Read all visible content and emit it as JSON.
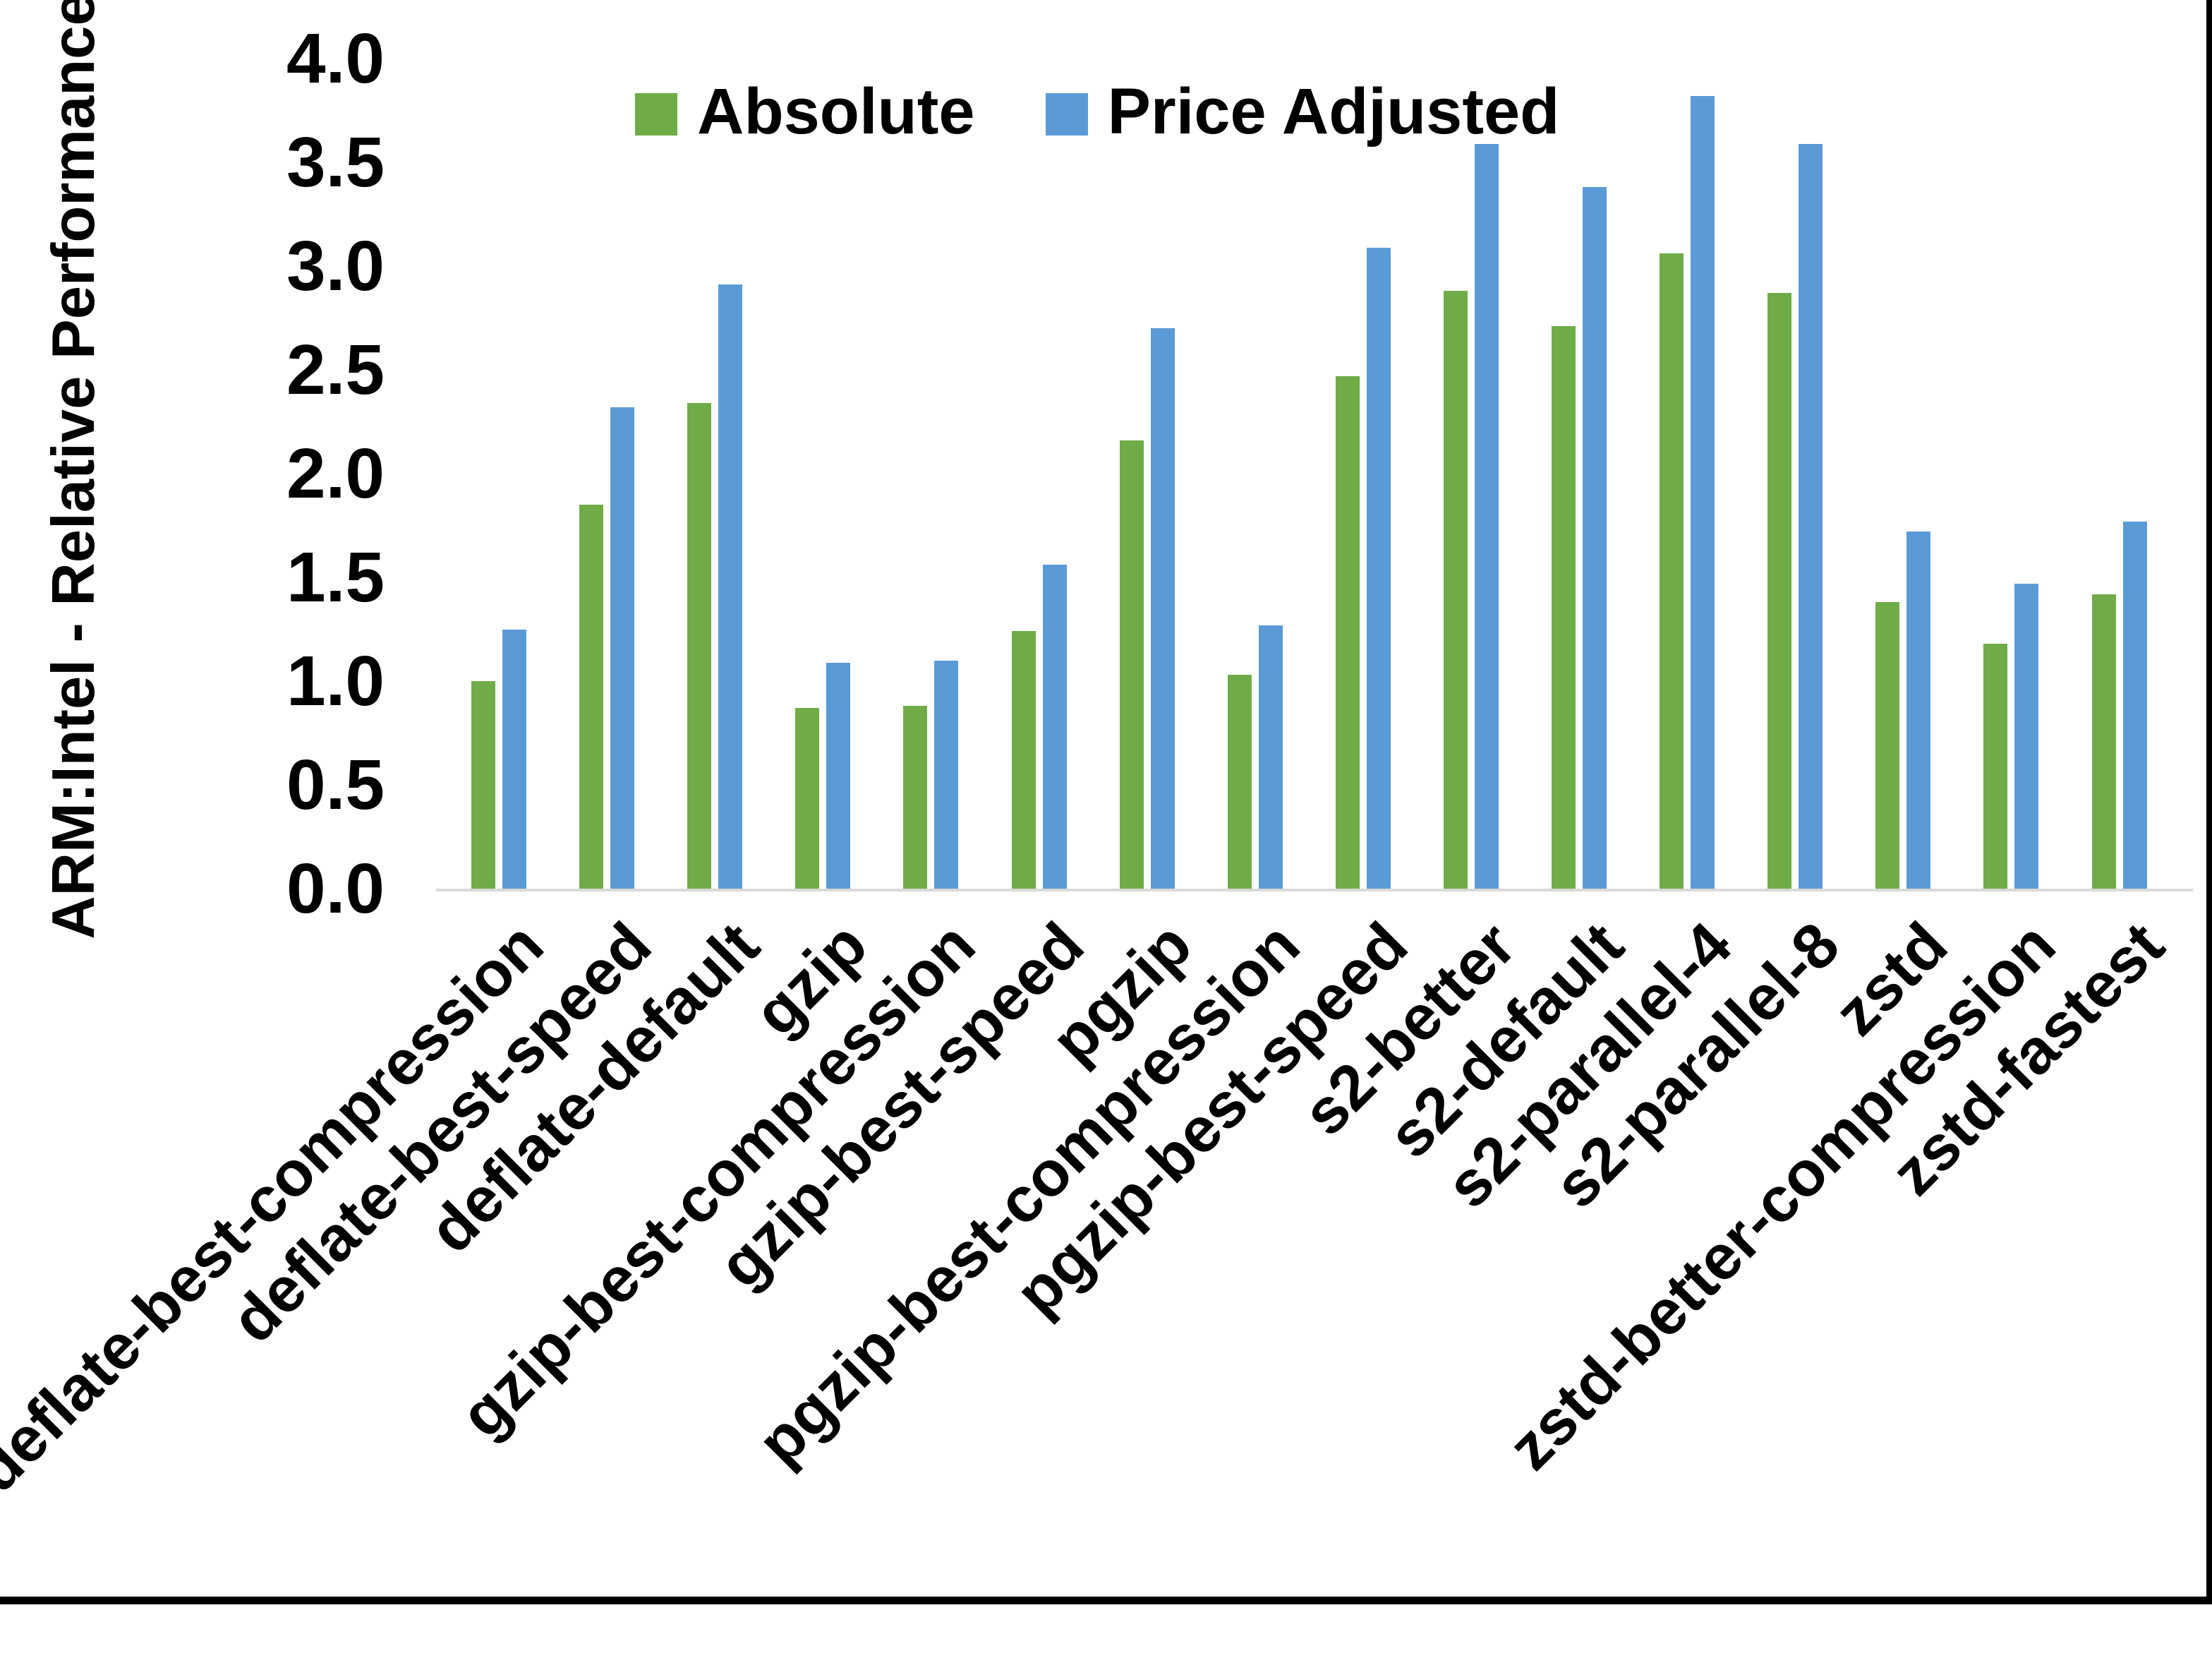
{
  "chart_data": {
    "type": "bar",
    "title": "",
    "ylabel": "ARM:Intel - Relative Performance",
    "xlabel": "",
    "ylim": [
      0.0,
      4.0
    ],
    "ytick_step": 0.5,
    "ytick_format_decimals": 1,
    "grid": false,
    "legend_position": "top-center",
    "x_label_rotation_deg": 45,
    "categories": [
      "deflate-best-compression",
      "deflate-best-speed",
      "deflate-default",
      "gzip",
      "gzip-best-compression",
      "gzip-best-speed",
      "pgzip",
      "pgzip-best-compression",
      "pgzip-best-speed",
      "s2-better",
      "s2-default",
      "s2-parallel-4",
      "s2-parallel-8",
      "zstd",
      "zstd-better-compression",
      "zstd-fastest"
    ],
    "series": [
      {
        "name": "Absolute",
        "color": "#6FAC47",
        "values": [
          1.0,
          1.85,
          2.34,
          0.87,
          0.88,
          1.24,
          2.16,
          1.03,
          2.47,
          2.88,
          2.71,
          3.06,
          2.87,
          1.38,
          1.18,
          1.42
        ]
      },
      {
        "name": "Price Adjusted",
        "color": "#5B9BD5",
        "values": [
          1.25,
          2.32,
          2.91,
          1.09,
          1.1,
          1.56,
          2.7,
          1.27,
          3.09,
          3.59,
          3.38,
          3.82,
          3.59,
          1.72,
          1.47,
          1.77
        ]
      }
    ],
    "axis_line_color": "#D9D9D9",
    "text_color": "#000000"
  }
}
